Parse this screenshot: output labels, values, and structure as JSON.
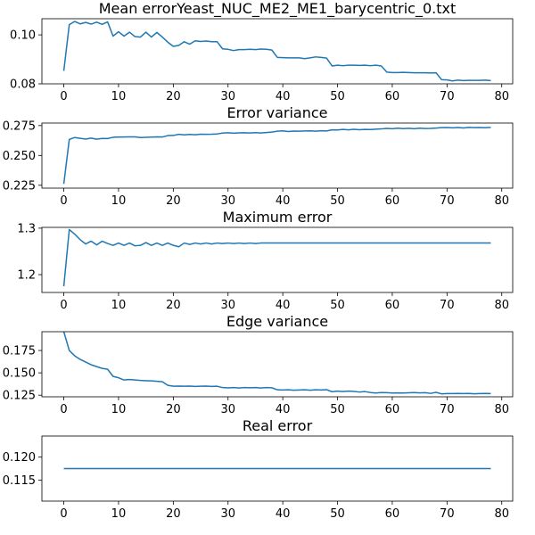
{
  "chart_data": [
    {
      "type": "line",
      "title": "Mean errorYeast_NUC_ME2_ME1_barycentric_0.txt",
      "xlim": [
        -4,
        82
      ],
      "ylim": [
        0.08,
        0.1066
      ],
      "xticks": [
        0,
        10,
        20,
        30,
        40,
        50,
        60,
        70,
        80
      ],
      "yticks": [
        0.08,
        0.1
      ],
      "ytick_labels": [
        "0.08",
        "0.10"
      ],
      "x": [
        0,
        1,
        2,
        3,
        4,
        5,
        6,
        7,
        8,
        9,
        10,
        11,
        12,
        13,
        14,
        15,
        16,
        17,
        18,
        19,
        20,
        21,
        22,
        23,
        24,
        25,
        26,
        27,
        28,
        29,
        30,
        31,
        32,
        33,
        34,
        35,
        36,
        37,
        38,
        39,
        40,
        41,
        42,
        43,
        44,
        45,
        46,
        47,
        48,
        49,
        50,
        51,
        52,
        53,
        54,
        55,
        56,
        57,
        58,
        59,
        60,
        61,
        62,
        63,
        64,
        65,
        66,
        67,
        68,
        69,
        70,
        71,
        72,
        73,
        74,
        75,
        76,
        77,
        78
      ],
      "series": [
        {
          "values": [
            0.0853,
            0.1042,
            0.1055,
            0.1045,
            0.1051,
            0.1044,
            0.1052,
            0.1043,
            0.1053,
            0.0995,
            0.1013,
            0.0995,
            0.1011,
            0.0993,
            0.0991,
            0.1011,
            0.0991,
            0.101,
            0.0991,
            0.097,
            0.0953,
            0.0957,
            0.0972,
            0.0962,
            0.0976,
            0.0973,
            0.0975,
            0.0972,
            0.0972,
            0.0943,
            0.0941,
            0.0936,
            0.094,
            0.094,
            0.0941,
            0.094,
            0.0942,
            0.0941,
            0.0938,
            0.0908,
            0.0907,
            0.0906,
            0.0906,
            0.0906,
            0.0903,
            0.0906,
            0.091,
            0.0908,
            0.0905,
            0.0873,
            0.0876,
            0.0874,
            0.0876,
            0.0876,
            0.0875,
            0.0876,
            0.0874,
            0.0876,
            0.0873,
            0.0848,
            0.0846,
            0.0846,
            0.0847,
            0.0846,
            0.0845,
            0.0845,
            0.0845,
            0.0844,
            0.0845,
            0.0817,
            0.0816,
            0.0812,
            0.0815,
            0.0813,
            0.0814,
            0.0814,
            0.0814,
            0.0815,
            0.0813
          ]
        }
      ]
    },
    {
      "type": "line",
      "title": "Error variance",
      "xlim": [
        -4,
        82
      ],
      "ylim": [
        0.2226,
        0.2771
      ],
      "xticks": [
        0,
        10,
        20,
        30,
        40,
        50,
        60,
        70,
        80
      ],
      "yticks": [
        0.225,
        0.25,
        0.275
      ],
      "ytick_labels": [
        "0.225",
        "0.250",
        "0.275"
      ],
      "x": [
        0,
        1,
        2,
        3,
        4,
        5,
        6,
        7,
        8,
        9,
        10,
        11,
        12,
        13,
        14,
        15,
        16,
        17,
        18,
        19,
        20,
        21,
        22,
        23,
        24,
        25,
        26,
        27,
        28,
        29,
        30,
        31,
        32,
        33,
        34,
        35,
        36,
        37,
        38,
        39,
        40,
        41,
        42,
        43,
        44,
        45,
        46,
        47,
        48,
        49,
        50,
        51,
        52,
        53,
        54,
        55,
        56,
        57,
        58,
        59,
        60,
        61,
        62,
        63,
        64,
        65,
        66,
        67,
        68,
        69,
        70,
        71,
        72,
        73,
        74,
        75,
        76,
        77,
        78
      ],
      "series": [
        {
          "values": [
            0.2262,
            0.2634,
            0.265,
            0.2643,
            0.2637,
            0.2645,
            0.2636,
            0.2642,
            0.2641,
            0.2652,
            0.2653,
            0.2654,
            0.2655,
            0.2655,
            0.265,
            0.2652,
            0.2653,
            0.2655,
            0.2654,
            0.2666,
            0.2667,
            0.2677,
            0.2672,
            0.2676,
            0.2673,
            0.2678,
            0.2677,
            0.2678,
            0.268,
            0.2687,
            0.269,
            0.2686,
            0.2689,
            0.269,
            0.2688,
            0.2691,
            0.2688,
            0.2692,
            0.2695,
            0.2703,
            0.2706,
            0.27,
            0.2704,
            0.2703,
            0.2705,
            0.2706,
            0.2703,
            0.2707,
            0.2705,
            0.2714,
            0.2713,
            0.2718,
            0.2714,
            0.2719,
            0.2715,
            0.2718,
            0.2717,
            0.272,
            0.2722,
            0.2726,
            0.2723,
            0.2728,
            0.2724,
            0.2727,
            0.2723,
            0.2728,
            0.2725,
            0.2726,
            0.2729,
            0.2733,
            0.2734,
            0.2731,
            0.2734,
            0.273,
            0.2735,
            0.2733,
            0.2734,
            0.2732,
            0.2735
          ]
        }
      ]
    },
    {
      "type": "line",
      "title": "Maximum error",
      "xlim": [
        -4,
        82
      ],
      "ylim": [
        1.1616,
        1.3017
      ],
      "xticks": [
        0,
        10,
        20,
        30,
        40,
        50,
        60,
        70,
        80
      ],
      "yticks": [
        1.2,
        1.3
      ],
      "ytick_labels": [
        "1.2",
        "1.3"
      ],
      "x": [
        0,
        1,
        2,
        3,
        4,
        5,
        6,
        7,
        8,
        9,
        10,
        11,
        12,
        13,
        14,
        15,
        16,
        17,
        18,
        19,
        20,
        21,
        22,
        23,
        24,
        25,
        26,
        27,
        28,
        29,
        30,
        31,
        32,
        33,
        34,
        35,
        36,
        37,
        38,
        39,
        40,
        41,
        42,
        43,
        44,
        45,
        46,
        47,
        48,
        49,
        50,
        51,
        52,
        53,
        54,
        55,
        56,
        57,
        58,
        59,
        60,
        61,
        62,
        63,
        64,
        65,
        66,
        67,
        68,
        69,
        70,
        71,
        72,
        73,
        74,
        75,
        76,
        77,
        78
      ],
      "series": [
        {
          "values": [
            1.175,
            1.297,
            1.287,
            1.275,
            1.266,
            1.272,
            1.264,
            1.272,
            1.267,
            1.263,
            1.268,
            1.263,
            1.268,
            1.262,
            1.263,
            1.269,
            1.263,
            1.268,
            1.263,
            1.268,
            1.263,
            1.26,
            1.268,
            1.265,
            1.268,
            1.266,
            1.268,
            1.266,
            1.268,
            1.267,
            1.268,
            1.267,
            1.268,
            1.267,
            1.268,
            1.267,
            1.268,
            1.268,
            1.268,
            1.268,
            1.268,
            1.268,
            1.268,
            1.268,
            1.268,
            1.268,
            1.268,
            1.268,
            1.268,
            1.268,
            1.268,
            1.268,
            1.268,
            1.268,
            1.268,
            1.268,
            1.268,
            1.268,
            1.268,
            1.268,
            1.268,
            1.268,
            1.268,
            1.268,
            1.268,
            1.268,
            1.268,
            1.268,
            1.268,
            1.268,
            1.268,
            1.268,
            1.268,
            1.268,
            1.268,
            1.268,
            1.268,
            1.268,
            1.268
          ]
        }
      ]
    },
    {
      "type": "line",
      "title": "Edge variance",
      "xlim": [
        -4,
        82
      ],
      "ylim": [
        0.1232,
        0.196
      ],
      "xticks": [
        0,
        10,
        20,
        30,
        40,
        50,
        60,
        70,
        80
      ],
      "yticks": [
        0.125,
        0.15,
        0.175
      ],
      "ytick_labels": [
        "0.125",
        "0.150",
        "0.175"
      ],
      "x": [
        0,
        1,
        2,
        3,
        4,
        5,
        6,
        7,
        8,
        9,
        10,
        11,
        12,
        13,
        14,
        15,
        16,
        17,
        18,
        19,
        20,
        21,
        22,
        23,
        24,
        25,
        26,
        27,
        28,
        29,
        30,
        31,
        32,
        33,
        34,
        35,
        36,
        37,
        38,
        39,
        40,
        41,
        42,
        43,
        44,
        45,
        46,
        47,
        48,
        49,
        50,
        51,
        52,
        53,
        54,
        55,
        56,
        57,
        58,
        59,
        60,
        61,
        62,
        63,
        64,
        65,
        66,
        67,
        68,
        69,
        70,
        71,
        72,
        73,
        74,
        75,
        76,
        77,
        78
      ],
      "series": [
        {
          "values": [
            0.196,
            0.175,
            0.169,
            0.165,
            0.162,
            0.159,
            0.157,
            0.155,
            0.154,
            0.146,
            0.1445,
            0.142,
            0.1425,
            0.142,
            0.1415,
            0.1412,
            0.141,
            0.1405,
            0.14,
            0.136,
            0.135,
            0.1352,
            0.135,
            0.1352,
            0.1348,
            0.135,
            0.1352,
            0.1348,
            0.135,
            0.1335,
            0.1332,
            0.1335,
            0.133,
            0.1335,
            0.1333,
            0.1336,
            0.133,
            0.1335,
            0.1333,
            0.131,
            0.1308,
            0.131,
            0.1305,
            0.1308,
            0.131,
            0.1306,
            0.131,
            0.1308,
            0.1312,
            0.1288,
            0.1295,
            0.129,
            0.1295,
            0.1292,
            0.1285,
            0.129,
            0.128,
            0.1275,
            0.128,
            0.1278,
            0.1275,
            0.1276,
            0.1275,
            0.1277,
            0.128,
            0.1276,
            0.1278,
            0.127,
            0.1282,
            0.1265,
            0.1268,
            0.1268,
            0.127,
            0.1268,
            0.127,
            0.1266,
            0.1268,
            0.127,
            0.1268
          ]
        }
      ]
    },
    {
      "type": "line",
      "title": "Real error",
      "xlim": [
        -4,
        82
      ],
      "ylim": [
        0.1104,
        0.1246
      ],
      "xticks": [
        0,
        10,
        20,
        30,
        40,
        50,
        60,
        70,
        80
      ],
      "yticks": [
        0.115,
        0.12
      ],
      "ytick_labels": [
        "0.115",
        "0.120"
      ],
      "x": [
        0,
        1,
        2,
        3,
        4,
        5,
        6,
        7,
        8,
        9,
        10,
        11,
        12,
        13,
        14,
        15,
        16,
        17,
        18,
        19,
        20,
        21,
        22,
        23,
        24,
        25,
        26,
        27,
        28,
        29,
        30,
        31,
        32,
        33,
        34,
        35,
        36,
        37,
        38,
        39,
        40,
        41,
        42,
        43,
        44,
        45,
        46,
        47,
        48,
        49,
        50,
        51,
        52,
        53,
        54,
        55,
        56,
        57,
        58,
        59,
        60,
        61,
        62,
        63,
        64,
        65,
        66,
        67,
        68,
        69,
        70,
        71,
        72,
        73,
        74,
        75,
        76,
        77,
        78
      ],
      "series": [
        {
          "values": [
            0.1175,
            0.1175,
            0.1175,
            0.1175,
            0.1175,
            0.1175,
            0.1175,
            0.1175,
            0.1175,
            0.1175,
            0.1175,
            0.1175,
            0.1175,
            0.1175,
            0.1175,
            0.1175,
            0.1175,
            0.1175,
            0.1175,
            0.1175,
            0.1175,
            0.1175,
            0.1175,
            0.1175,
            0.1175,
            0.1175,
            0.1175,
            0.1175,
            0.1175,
            0.1175,
            0.1175,
            0.1175,
            0.1175,
            0.1175,
            0.1175,
            0.1175,
            0.1175,
            0.1175,
            0.1175,
            0.1175,
            0.1175,
            0.1175,
            0.1175,
            0.1175,
            0.1175,
            0.1175,
            0.1175,
            0.1175,
            0.1175,
            0.1175,
            0.1175,
            0.1175,
            0.1175,
            0.1175,
            0.1175,
            0.1175,
            0.1175,
            0.1175,
            0.1175,
            0.1175,
            0.1175,
            0.1175,
            0.1175,
            0.1175,
            0.1175,
            0.1175,
            0.1175,
            0.1175,
            0.1175,
            0.1175,
            0.1175,
            0.1175,
            0.1175,
            0.1175,
            0.1175,
            0.1175,
            0.1175,
            0.1175,
            0.1175
          ]
        }
      ]
    }
  ],
  "colors": {
    "series": "#1f77b4",
    "axis": "#000000",
    "background": "#ffffff"
  }
}
